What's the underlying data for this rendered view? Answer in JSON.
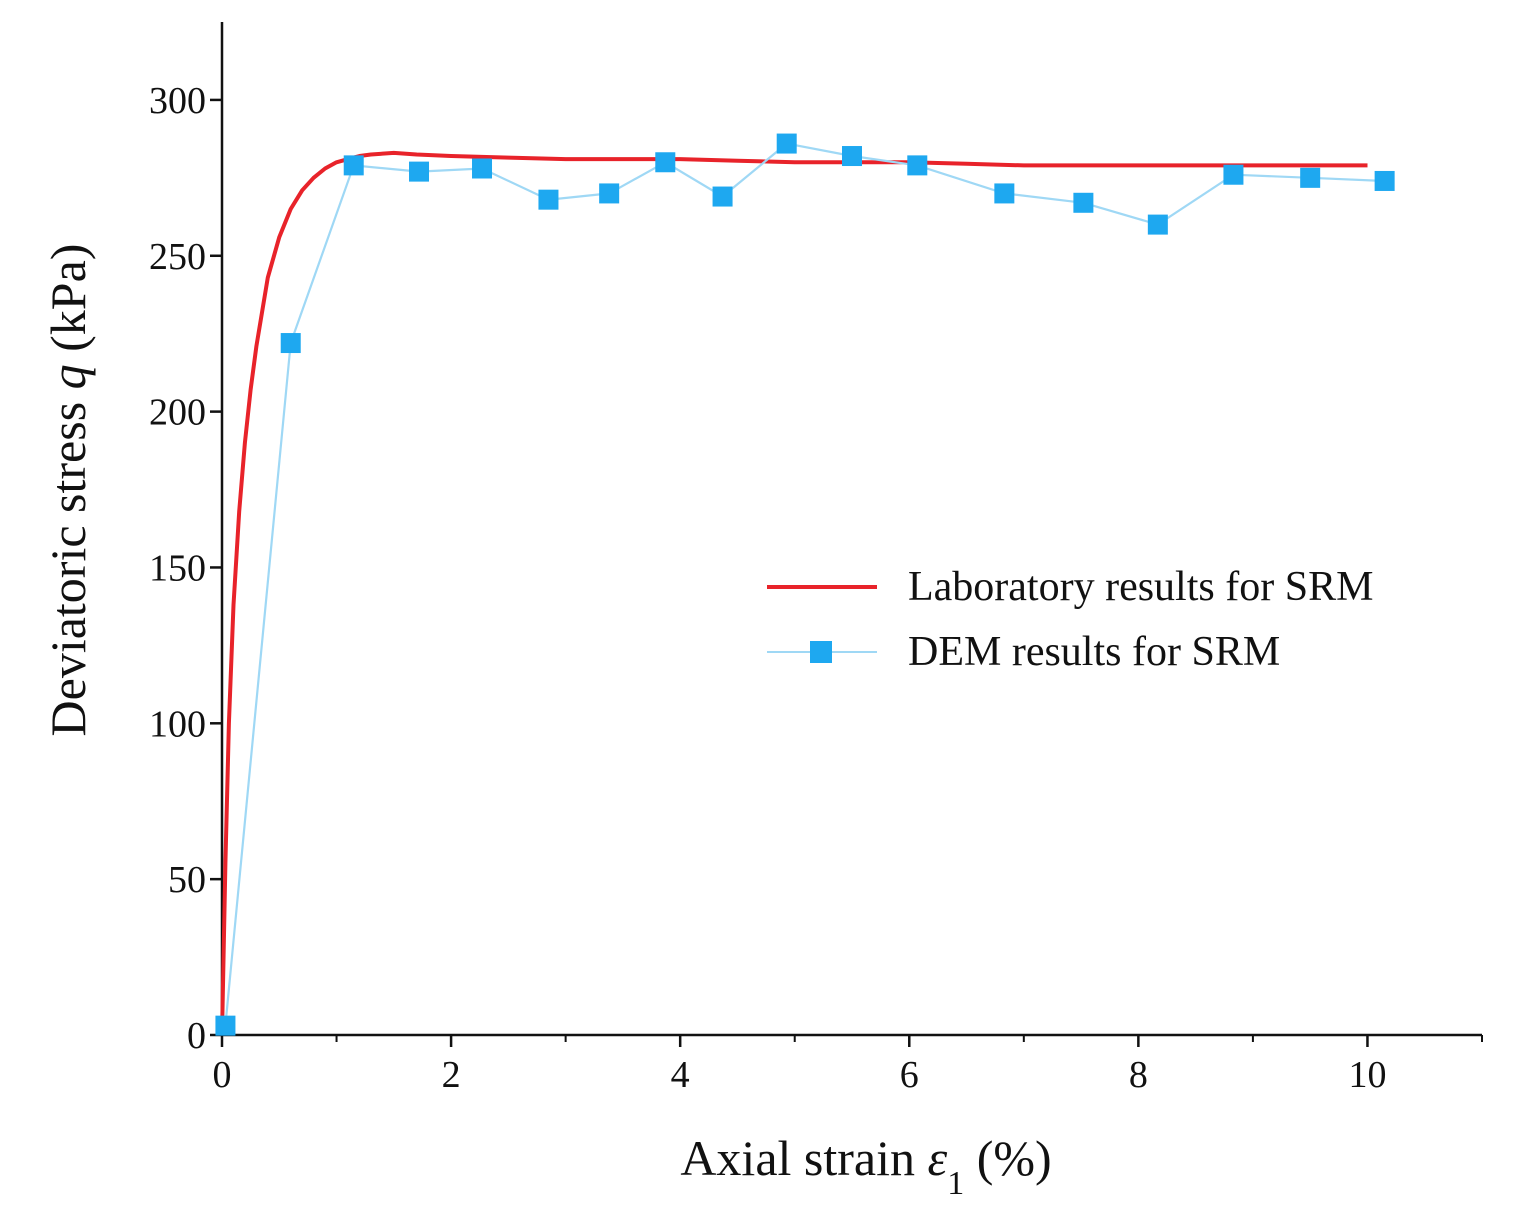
{
  "chart_data": {
    "type": "line",
    "title": "",
    "xlabel": {
      "prefix": "Axial strain ",
      "symbol": "ε",
      "subscript": "1",
      "suffix": " (%)"
    },
    "ylabel": {
      "prefix": "Deviatoric stress ",
      "symbol": "q",
      "suffix": " (kPa)"
    },
    "xlim": [
      0,
      11
    ],
    "ylim": [
      0,
      325
    ],
    "x_ticks": [
      0,
      2,
      4,
      6,
      8,
      10
    ],
    "x_tick_labels": [
      "0",
      "2",
      "4",
      "6",
      "8",
      "10"
    ],
    "x_minor_ticks": [
      1,
      3,
      5,
      7,
      9,
      11
    ],
    "y_ticks": [
      0,
      50,
      100,
      150,
      200,
      250,
      300
    ],
    "y_tick_labels": [
      "0",
      "50",
      "100",
      "150",
      "200",
      "250",
      "300"
    ],
    "legend_position": "center-right",
    "series": [
      {
        "name": "Laboratory results for SRM",
        "color": "#e8232a",
        "marker": "none",
        "x": [
          0,
          0.03,
          0.06,
          0.1,
          0.15,
          0.2,
          0.25,
          0.3,
          0.4,
          0.5,
          0.6,
          0.7,
          0.8,
          0.9,
          1.0,
          1.1,
          1.2,
          1.3,
          1.5,
          1.7,
          2.0,
          2.5,
          3.0,
          3.5,
          4.0,
          4.5,
          5.0,
          5.5,
          6.0,
          6.5,
          7.0,
          7.5,
          8.0,
          8.5,
          9.0,
          9.5,
          10.0
        ],
        "y": [
          0,
          55,
          100,
          138,
          168,
          190,
          207,
          221,
          243,
          256,
          265,
          271,
          275,
          278,
          280,
          281,
          282,
          282.5,
          283,
          282.5,
          282,
          281.5,
          281,
          281,
          281,
          280.5,
          280,
          280,
          280,
          279.5,
          279,
          279,
          279,
          279,
          279,
          279,
          279
        ]
      },
      {
        "name": "DEM results for SRM",
        "color": "#1ea8f0",
        "line_color": "#9fd8f5",
        "marker": "square",
        "x": [
          0.03,
          0.6,
          1.15,
          1.72,
          2.27,
          2.85,
          3.38,
          3.87,
          4.37,
          4.93,
          5.5,
          6.07,
          6.83,
          7.52,
          8.17,
          8.83,
          9.5,
          10.15
        ],
        "y": [
          3,
          222,
          279,
          277,
          278,
          268,
          270,
          280,
          269,
          286,
          282,
          279,
          270,
          267,
          260,
          276,
          275,
          274
        ]
      }
    ]
  }
}
